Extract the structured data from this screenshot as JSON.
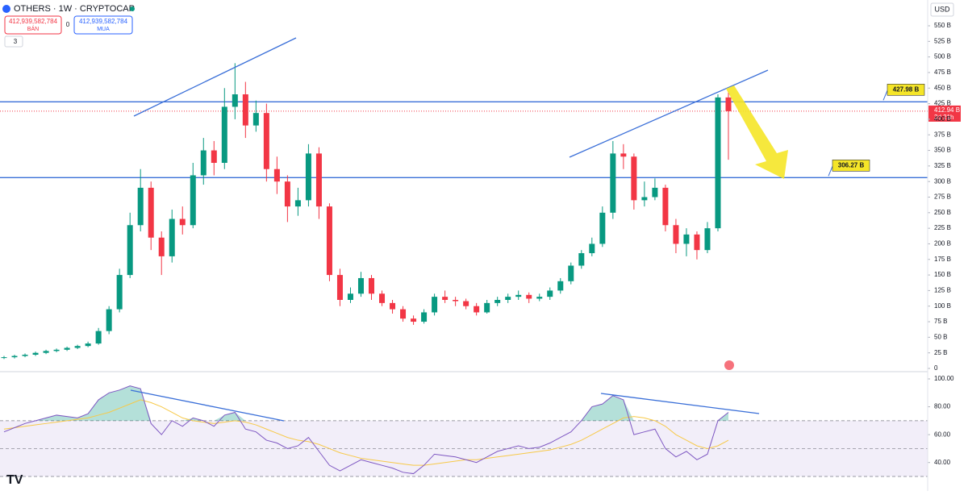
{
  "header": {
    "symbol": "OTHERS · 1W · CRYPTOCAP",
    "sell_price": "412,939,582,784",
    "sell_label": "BÁN",
    "spread": "0",
    "buy_price": "412,939,582,784",
    "buy_label": "MUA",
    "indicator_count": "3",
    "currency": "USD"
  },
  "chart_data": {
    "type": "candlestick",
    "up_color": "#089981",
    "down_color": "#f23645",
    "open": [
      17,
      18,
      20,
      22,
      25,
      28,
      30,
      33,
      36,
      40,
      60,
      95,
      150,
      230,
      290,
      210,
      180,
      240,
      230,
      310,
      350,
      330,
      420,
      440,
      390,
      410,
      320,
      300,
      260,
      270,
      345,
      260,
      150,
      110,
      120,
      145,
      120,
      105,
      95,
      80,
      75,
      90,
      115,
      110,
      108,
      100,
      90,
      105,
      110,
      115,
      118,
      112,
      115,
      125,
      140,
      165,
      185,
      200,
      250,
      345,
      340,
      270,
      275,
      290,
      230,
      200,
      215,
      190,
      225,
      435
    ],
    "high": [
      20,
      22,
      24,
      27,
      30,
      32,
      35,
      38,
      43,
      65,
      100,
      160,
      250,
      320,
      300,
      220,
      255,
      260,
      330,
      370,
      365,
      450,
      490,
      460,
      430,
      425,
      340,
      310,
      290,
      360,
      355,
      265,
      160,
      130,
      155,
      150,
      125,
      110,
      100,
      85,
      95,
      120,
      125,
      115,
      112,
      105,
      110,
      115,
      120,
      125,
      122,
      120,
      130,
      145,
      170,
      190,
      210,
      260,
      365,
      360,
      345,
      300,
      305,
      295,
      240,
      225,
      220,
      235,
      440,
      445
    ],
    "low": [
      15,
      16,
      18,
      20,
      23,
      26,
      28,
      31,
      34,
      38,
      55,
      90,
      145,
      220,
      190,
      150,
      170,
      215,
      225,
      295,
      310,
      320,
      400,
      370,
      380,
      300,
      280,
      235,
      245,
      260,
      240,
      140,
      100,
      105,
      115,
      110,
      100,
      88,
      75,
      70,
      72,
      85,
      105,
      100,
      95,
      85,
      88,
      100,
      105,
      110,
      105,
      108,
      110,
      120,
      135,
      160,
      180,
      195,
      240,
      320,
      255,
      260,
      270,
      220,
      185,
      180,
      175,
      185,
      220,
      335
    ],
    "close": [
      18,
      20,
      22,
      25,
      28,
      30,
      33,
      36,
      40,
      60,
      95,
      150,
      230,
      290,
      210,
      180,
      240,
      230,
      310,
      350,
      330,
      420,
      440,
      390,
      410,
      320,
      300,
      260,
      270,
      345,
      260,
      150,
      110,
      120,
      145,
      120,
      105,
      95,
      80,
      75,
      90,
      115,
      110,
      108,
      100,
      90,
      105,
      110,
      115,
      118,
      112,
      115,
      125,
      140,
      165,
      185,
      200,
      250,
      345,
      340,
      270,
      275,
      290,
      230,
      200,
      215,
      190,
      225,
      435,
      412.94
    ],
    "ylim": [
      0,
      550
    ],
    "yticks": [
      0,
      {
        "value": 25,
        "label": "25 B"
      },
      {
        "value": 50,
        "label": "50 B"
      },
      {
        "value": 75,
        "label": "75 B"
      },
      {
        "value": 100,
        "label": "100 B"
      },
      {
        "value": 125,
        "label": "125 B"
      },
      {
        "value": 150,
        "label": "150 B"
      },
      {
        "value": 175,
        "label": "175 B"
      },
      {
        "value": 200,
        "label": "200 B"
      },
      {
        "value": 225,
        "label": "225 B"
      },
      {
        "value": 250,
        "label": "250 B"
      },
      {
        "value": 275,
        "label": "275 B"
      },
      {
        "value": 300,
        "label": "300 B"
      },
      {
        "value": 325,
        "label": "325 B"
      },
      {
        "value": 350,
        "label": "350 B"
      },
      {
        "value": 375,
        "label": "375 B"
      },
      {
        "value": 400,
        "label": "400 B"
      },
      {
        "value": 425,
        "label": "425 B"
      },
      {
        "value": 450,
        "label": "450 B"
      },
      {
        "value": 475,
        "label": "475 B"
      },
      {
        "value": 500,
        "label": "500 B"
      },
      {
        "value": 525,
        "label": "525 B"
      },
      {
        "value": 550,
        "label": "550 B"
      }
    ],
    "levels": [
      {
        "value": 427.98,
        "label": "427.98 B"
      },
      {
        "value": 306.27,
        "label": "306.27 B"
      }
    ],
    "last_price": {
      "value": 412.94,
      "label": "412.94 B"
    },
    "countdown": "3d 21h",
    "rsi": {
      "color": "#7e57c2",
      "ma_color": "#f7c948",
      "values": [
        62,
        65,
        68,
        70,
        72,
        74,
        73,
        72,
        75,
        85,
        90,
        92,
        95,
        93,
        68,
        60,
        70,
        66,
        72,
        70,
        66,
        74,
        76,
        64,
        62,
        56,
        54,
        50,
        52,
        58,
        48,
        38,
        34,
        38,
        42,
        40,
        38,
        36,
        33,
        32,
        38,
        46,
        45,
        44,
        42,
        40,
        44,
        48,
        50,
        52,
        50,
        51,
        54,
        58,
        62,
        70,
        80,
        82,
        88,
        85,
        60,
        62,
        64,
        50,
        44,
        48,
        42,
        46,
        70,
        76
      ],
      "ma": [
        64,
        65,
        66,
        67,
        68,
        69,
        70,
        71,
        72,
        74,
        76,
        79,
        82,
        85,
        83,
        80,
        76,
        72,
        70,
        69,
        68,
        69,
        70,
        69,
        67,
        64,
        61,
        58,
        56,
        55,
        53,
        50,
        47,
        45,
        43,
        42,
        41,
        40,
        39,
        38,
        38,
        39,
        40,
        41,
        42,
        42,
        43,
        44,
        45,
        46,
        47,
        48,
        49,
        51,
        53,
        56,
        60,
        64,
        68,
        72,
        73,
        72,
        70,
        66,
        60,
        56,
        52,
        50,
        52,
        56
      ],
      "ylim": [
        30,
        100
      ],
      "band": [
        30,
        70
      ],
      "mid": 50,
      "yticks": [
        {
          "value": 40,
          "label": "40.00"
        },
        {
          "value": 60,
          "label": "60.00"
        },
        {
          "value": 80,
          "label": "80.00"
        },
        {
          "value": 100,
          "label": "100.00"
        }
      ]
    }
  }
}
